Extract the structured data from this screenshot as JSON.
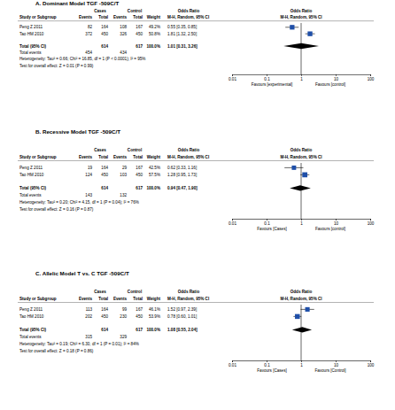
{
  "chart_data": [
    {
      "type": "forest",
      "title": "A. Dominant Model TGF -509C/T",
      "group_headers": [
        "Cases",
        "Control",
        "Odds Ratio",
        "Odds Ratio"
      ],
      "column_headers": [
        "Study or Subgroup",
        "Events",
        "Total",
        "Events",
        "Total",
        "Weight",
        "M-H, Random, 95% CI",
        "M-H, Random, 95% CI"
      ],
      "categories": [
        "Peng Z 2011",
        "Tao HM 2010"
      ],
      "cases_events": [
        82,
        372
      ],
      "cases_total": [
        164,
        450
      ],
      "control_events": [
        108,
        326
      ],
      "control_total": [
        167,
        450
      ],
      "weights": [
        49.2,
        50.8
      ],
      "weight_labels": [
        "49.2%",
        "50.8%"
      ],
      "values": [
        0.55,
        1.81
      ],
      "ci_low": [
        0.35,
        1.32
      ],
      "ci_high": [
        0.85,
        2.5
      ],
      "value_labels": [
        "0.55 [0.35, 0.85]",
        "1.81 [1.32, 2.50]"
      ],
      "total": {
        "label": "Total (95% CI)",
        "cases_total": 614,
        "control_total": 617,
        "weight": 100.0,
        "weight_label": "100.0%",
        "value": 1.01,
        "ci_low": 0.31,
        "ci_high": 3.26,
        "value_label": "1.01 [0.31, 3.26]"
      },
      "total_events": {
        "label": "Total events",
        "cases": 454,
        "control": 434
      },
      "heterogeneity": "Heterogeneity: Tau² = 0.66; Chi² = 16.85, df = 1 (P < 0.0001); I² = 95%",
      "overall_effect": "Test for overall effect: Z = 0.01 (P = 0.99)",
      "annotations": [
        "Favours [experimental]",
        "Favours [control]"
      ],
      "log": "x",
      "xlim": [
        0.01,
        100
      ],
      "xticks": [
        0.01,
        0.1,
        1,
        10,
        100
      ],
      "color": "#1f4fa8"
    },
    {
      "type": "forest",
      "title": "B. Recessive Model TGF -509C/T",
      "group_headers": [
        "Cases",
        "Control",
        "Odds Ratio",
        "Odds Ratio"
      ],
      "column_headers": [
        "Study or Subgroup",
        "Events",
        "Total",
        "Events",
        "Total",
        "Weight",
        "M-H, Random, 95% CI",
        "M-H, Random, 95% CI"
      ],
      "categories": [
        "Peng Z 2011",
        "Tao HM 2010"
      ],
      "cases_events": [
        19,
        124
      ],
      "cases_total": [
        164,
        450
      ],
      "control_events": [
        29,
        103
      ],
      "control_total": [
        167,
        450
      ],
      "weights": [
        42.5,
        57.5
      ],
      "weight_labels": [
        "42.5%",
        "57.5%"
      ],
      "values": [
        0.62,
        1.28
      ],
      "ci_low": [
        0.33,
        0.95
      ],
      "ci_high": [
        1.16,
        1.73
      ],
      "value_labels": [
        "0.62 [0.33, 1.16]",
        "1.28 [0.95, 1.73]"
      ],
      "total": {
        "label": "Total (95% CI)",
        "cases_total": 614,
        "control_total": 617,
        "weight": 100.0,
        "weight_label": "100.0%",
        "value": 0.94,
        "ci_low": 0.47,
        "ci_high": 1.9,
        "value_label": "0.94 [0.47, 1.90]"
      },
      "total_events": {
        "label": "Total events",
        "cases": 143,
        "control": 132
      },
      "heterogeneity": "Heterogeneity: Tau² = 0.20; Chi² = 4.15, df = 1 (P = 0.04); I² = 76%",
      "overall_effect": "Test for overall effect: Z = 0.16 (P = 0.87)",
      "annotations": [
        "Favours [Cases]",
        "Favours [control]"
      ],
      "log": "x",
      "xlim": [
        0.01,
        100
      ],
      "xticks": [
        0.01,
        0.1,
        1,
        10,
        100
      ],
      "color": "#1f4fa8"
    },
    {
      "type": "forest",
      "title": "C. Allelic Model T vs. C TGF -509C/T",
      "group_headers": [
        "Cases",
        "Control",
        "Odds Ratio",
        "Odds Ratio"
      ],
      "column_headers": [
        "Study or Subgroup",
        "Events",
        "Total",
        "Events",
        "Total",
        "Weight",
        "M-H, Random, 95% CI",
        "M-H, Random, 95% CI"
      ],
      "categories": [
        "Peng Z 2011",
        "Tao HM 2010"
      ],
      "cases_events": [
        113,
        202
      ],
      "cases_total": [
        164,
        450
      ],
      "control_events": [
        99,
        230
      ],
      "control_total": [
        167,
        450
      ],
      "weights": [
        46.1,
        53.9
      ],
      "weight_labels": [
        "46.1%",
        "53.9%"
      ],
      "values": [
        1.52,
        0.78
      ],
      "ci_low": [
        0.97,
        0.6
      ],
      "ci_high": [
        2.39,
        1.01
      ],
      "value_labels": [
        "1.52 [0.97, 2.39]",
        "0.78 [0.60, 1.01]"
      ],
      "total": {
        "label": "Total (95% CI)",
        "cases_total": 614,
        "control_total": 617,
        "weight": 100.0,
        "weight_label": "100.0%",
        "value": 1.08,
        "ci_low": 0.55,
        "ci_high": 2.04,
        "value_label": "1.08 [0.55, 2.04]"
      },
      "total_events": {
        "label": "Total events",
        "cases": 315,
        "control": 329
      },
      "heterogeneity": "Heterogeneity: Tau² = 0.19; Chi² = 6.30, df = 1 (P = 0.01); I² = 84%",
      "overall_effect": "Test for overall effect: Z = 0.18 (P = 0.86)",
      "annotations": [
        "Favours [Cases]",
        "Favours [Control]"
      ],
      "log": "x",
      "xlim": [
        0.01,
        100
      ],
      "xticks": [
        0.01,
        0.1,
        1,
        10,
        100
      ],
      "color": "#1f4fa8"
    }
  ]
}
